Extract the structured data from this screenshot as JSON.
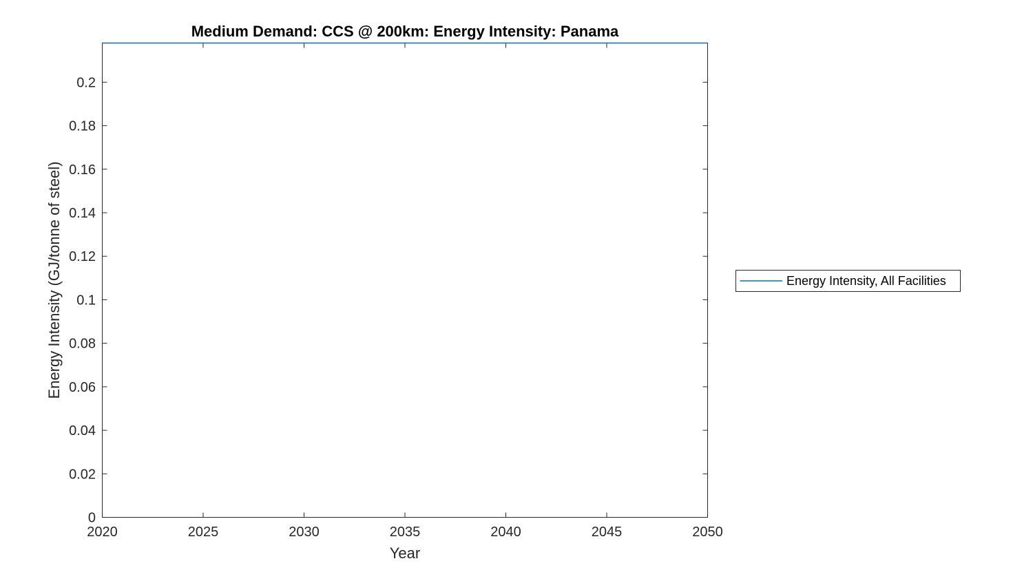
{
  "figure": {
    "background_color": "#ffffff",
    "axis_color": "#262626",
    "series_color": "#0072BD",
    "title": "Medium Demand: CCS @ 200km: Energy Intensity: Panama",
    "xlabel": "Year",
    "ylabel": "Energy Intensity (GJ/tonne of steel)",
    "legend": {
      "entries": [
        {
          "label": "Energy Intensity, All Facilities",
          "line_color": "#0072BD"
        }
      ],
      "position": "outside-right",
      "border_color": "#262626",
      "background": "#ffffff"
    }
  },
  "chart_data": {
    "type": "line",
    "title": "Medium Demand: CCS @ 200km: Energy Intensity: Panama",
    "xlabel": "Year",
    "ylabel": "Energy Intensity (GJ/tonne of steel)",
    "xlim": [
      2020,
      2050
    ],
    "ylim": [
      0,
      0.218
    ],
    "xticks": [
      "2020",
      "2025",
      "2030",
      "2035",
      "2040",
      "2045",
      "2050"
    ],
    "yticks": [
      "0",
      "0.02",
      "0.04",
      "0.06",
      "0.08",
      "0.1",
      "0.12",
      "0.14",
      "0.16",
      "0.18",
      "0.2"
    ],
    "grid": false,
    "legend_position": "outside-right",
    "series": [
      {
        "name": "Energy Intensity, All Facilities",
        "color": "#0072BD",
        "x": [
          2020,
          2025,
          2030,
          2035,
          2040,
          2045,
          2050
        ],
        "values": [
          0.218,
          0.218,
          0.218,
          0.218,
          0.218,
          0.218,
          0.218
        ],
        "note": "flat line lying on the top edge of the axes; value estimated from unlabeled axis top (~0.218)"
      }
    ]
  }
}
